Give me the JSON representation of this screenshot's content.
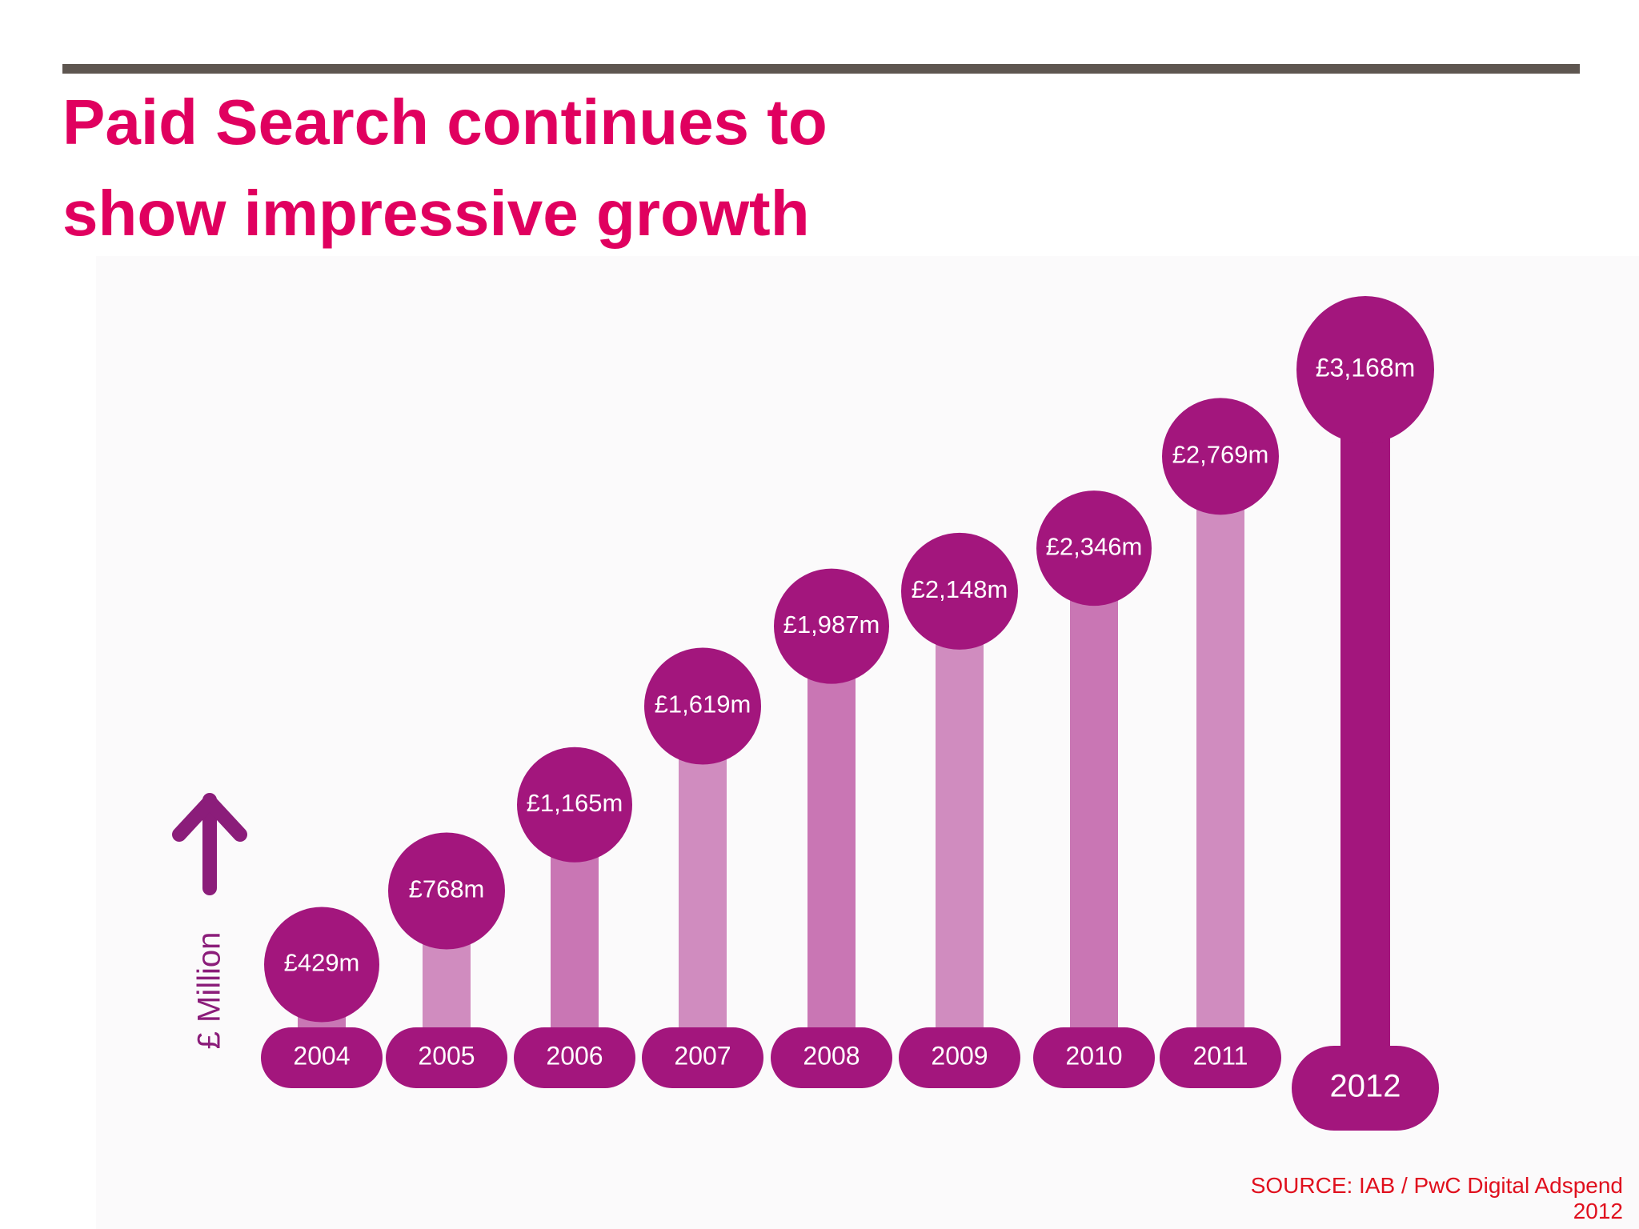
{
  "slide": {
    "title_lines": [
      "Paid Search continues to",
      "show impressive growth"
    ],
    "source_lines": [
      "SOURCE: IAB / PwC Digital Adspend",
      "2012"
    ]
  },
  "colors": {
    "title": "#e0005f",
    "rule": "#5e5650",
    "source": "#e0101e",
    "bubble": "#a3167d",
    "stem_light": "#d08cbf",
    "stem_mid": "#c976b4",
    "stem_2012": "#a3167d",
    "axis": "#8b1d7a"
  },
  "chart_data": {
    "type": "bar",
    "categories": [
      "2004",
      "2005",
      "2006",
      "2007",
      "2008",
      "2009",
      "2010",
      "2011",
      "2012"
    ],
    "values": [
      429,
      768,
      1165,
      1619,
      1987,
      2148,
      2346,
      2769,
      3168
    ],
    "value_labels": [
      "£429m",
      "£768m",
      "£1,165m",
      "£1,619m",
      "£1,987m",
      "£2,148m",
      "£2,346m",
      "£2,769m",
      "£3,168m"
    ],
    "ylabel": "£ Million",
    "highlight_category": "2012",
    "grid": false,
    "legend": "none"
  }
}
